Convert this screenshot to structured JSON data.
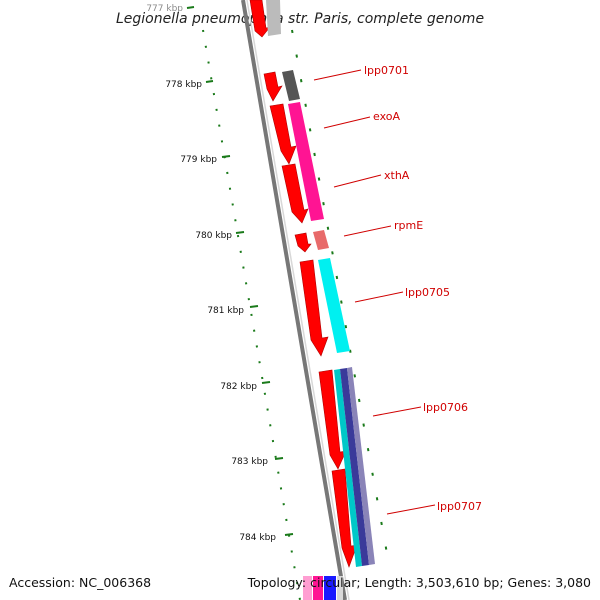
{
  "title": "Legionella pneumophila str. Paris, complete genome",
  "footer": {
    "accession": "Accession: NC_006368",
    "topology": "Topology: circular; Length: 3,503,610 bp; Genes: 3,080"
  },
  "ruler": {
    "ticks": [
      "777 kbp",
      "778 kbp",
      "779 kbp",
      "780 kbp",
      "781 kbp",
      "782 kbp",
      "783 kbp",
      "784 kbp"
    ]
  },
  "genes": [
    {
      "name": "lpp0701",
      "feature_color": "#555555"
    },
    {
      "name": "exoA",
      "feature_color": "#ff1493"
    },
    {
      "name": "xthA",
      "feature_color": "#ff1493"
    },
    {
      "name": "rpmE",
      "feature_color": "#e86a6a"
    },
    {
      "name": "lpp0705",
      "feature_color": "#00f0f0"
    },
    {
      "name": "lpp0706",
      "feature_color": "#00c8c8"
    },
    {
      "name": "lpp0707",
      "feature_color": "#4a4a8a"
    }
  ],
  "colors": {
    "cds": "#ff0000",
    "backbone": "#888888",
    "gc_ticks": "#1a7a1a",
    "label": "#d00000"
  }
}
